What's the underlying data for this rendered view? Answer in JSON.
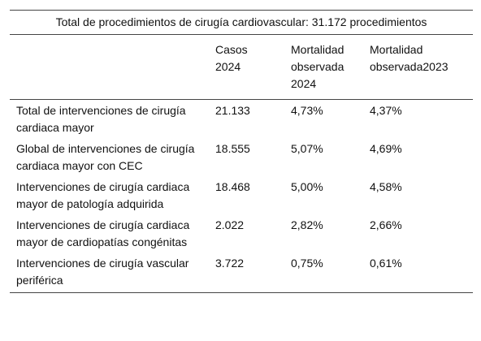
{
  "table": {
    "title": "Total de procedimientos de cirugía cardiovascular: 31.172 procedimientos",
    "headers": [
      "Casos 2024",
      "Mortalidad observada 2024",
      "Mortalidad observada2023"
    ],
    "rows": [
      [
        "Total de intervenciones de cirugía cardiaca mayor",
        "21.133",
        "4,73%",
        "4,37%"
      ],
      [
        "Global de intervenciones de cirugía cardiaca mayor con CEC",
        "18.555",
        "5,07%",
        "4,69%"
      ],
      [
        "Intervenciones de cirugía cardiaca mayor de patología adquirida",
        "18.468",
        "5,00%",
        "4,58%"
      ],
      [
        "Intervenciones de cirugía cardiaca mayor de cardiopatías congénitas",
        "2.022",
        "2,82%",
        "2,66%"
      ],
      [
        "Intervenciones de cirugía vascular periférica",
        "3.722",
        "0,75%",
        "0,61%"
      ]
    ]
  }
}
